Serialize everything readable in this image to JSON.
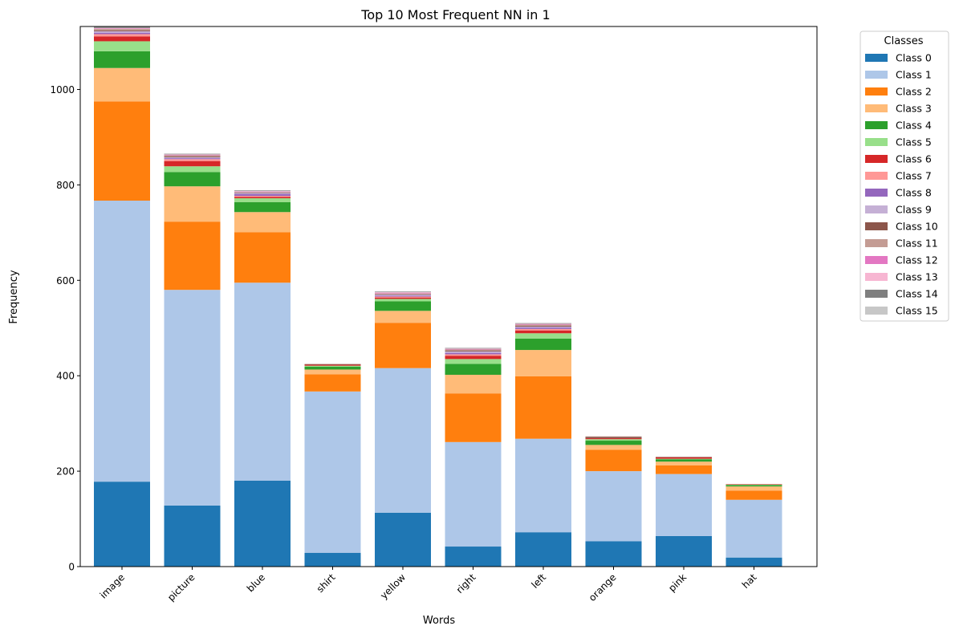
{
  "chart_data": {
    "type": "bar",
    "stacked": true,
    "title": "Top 10 Most Frequent NN in 1",
    "xlabel": "Words",
    "ylabel": "Frequency",
    "ylim": [
      0,
      1132
    ],
    "yticks": [
      0,
      200,
      400,
      600,
      800,
      1000
    ],
    "categories": [
      "image",
      "picture",
      "blue",
      "shirt",
      "yellow",
      "right",
      "left",
      "orange",
      "pink",
      "hat"
    ],
    "legend": {
      "title": "Classes",
      "placement": "outside-top-right"
    },
    "series": [
      {
        "name": "Class 0",
        "color": "#1f77b4",
        "values": [
          178,
          128,
          180,
          29,
          113,
          42,
          72,
          53,
          64,
          19
        ]
      },
      {
        "name": "Class 1",
        "color": "#aec7e8",
        "values": [
          589,
          452,
          415,
          338,
          303,
          219,
          196,
          147,
          130,
          121
        ]
      },
      {
        "name": "Class 2",
        "color": "#ff7f0e",
        "values": [
          208,
          143,
          106,
          36,
          95,
          102,
          131,
          45,
          18,
          19
        ]
      },
      {
        "name": "Class 3",
        "color": "#ffbb78",
        "values": [
          70,
          74,
          42,
          10,
          25,
          39,
          55,
          10,
          8,
          9
        ]
      },
      {
        "name": "Class 4",
        "color": "#2ca02c",
        "values": [
          35,
          30,
          21,
          6,
          20,
          23,
          24,
          9,
          5,
          3
        ]
      },
      {
        "name": "Class 5",
        "color": "#98df8a",
        "values": [
          21,
          12,
          8,
          2,
          5,
          10,
          11,
          3,
          1,
          1
        ]
      },
      {
        "name": "Class 6",
        "color": "#d62728",
        "values": [
          10,
          11,
          3,
          2,
          3,
          7,
          6,
          2,
          3,
          1
        ]
      },
      {
        "name": "Class 7",
        "color": "#ff9896",
        "values": [
          5,
          4,
          2,
          0,
          2,
          3,
          3,
          0,
          0,
          0
        ]
      },
      {
        "name": "Class 8",
        "color": "#9467bd",
        "values": [
          3,
          2,
          4,
          0,
          2,
          3,
          3,
          0,
          0,
          0
        ]
      },
      {
        "name": "Class 9",
        "color": "#c5b0d5",
        "values": [
          3,
          2,
          2,
          0,
          2,
          3,
          2,
          0,
          0,
          0
        ]
      },
      {
        "name": "Class 10",
        "color": "#8c564b",
        "values": [
          2,
          2,
          1,
          1,
          1,
          2,
          2,
          3,
          1,
          0
        ]
      },
      {
        "name": "Class 11",
        "color": "#c49c94",
        "values": [
          3,
          2,
          1,
          1,
          1,
          2,
          2,
          1,
          0,
          0
        ]
      },
      {
        "name": "Class 12",
        "color": "#e377c2",
        "values": [
          1,
          1,
          1,
          0,
          1,
          1,
          1,
          0,
          0,
          0
        ]
      },
      {
        "name": "Class 13",
        "color": "#f7b6d2",
        "values": [
          1,
          1,
          1,
          0,
          2,
          1,
          1,
          0,
          0,
          0
        ]
      },
      {
        "name": "Class 14",
        "color": "#7f7f7f",
        "values": [
          2,
          1,
          1,
          0,
          1,
          1,
          1,
          0,
          0,
          0
        ]
      },
      {
        "name": "Class 15",
        "color": "#c7c7c7",
        "values": [
          1,
          1,
          1,
          0,
          1,
          1,
          1,
          0,
          0,
          0
        ]
      }
    ]
  }
}
